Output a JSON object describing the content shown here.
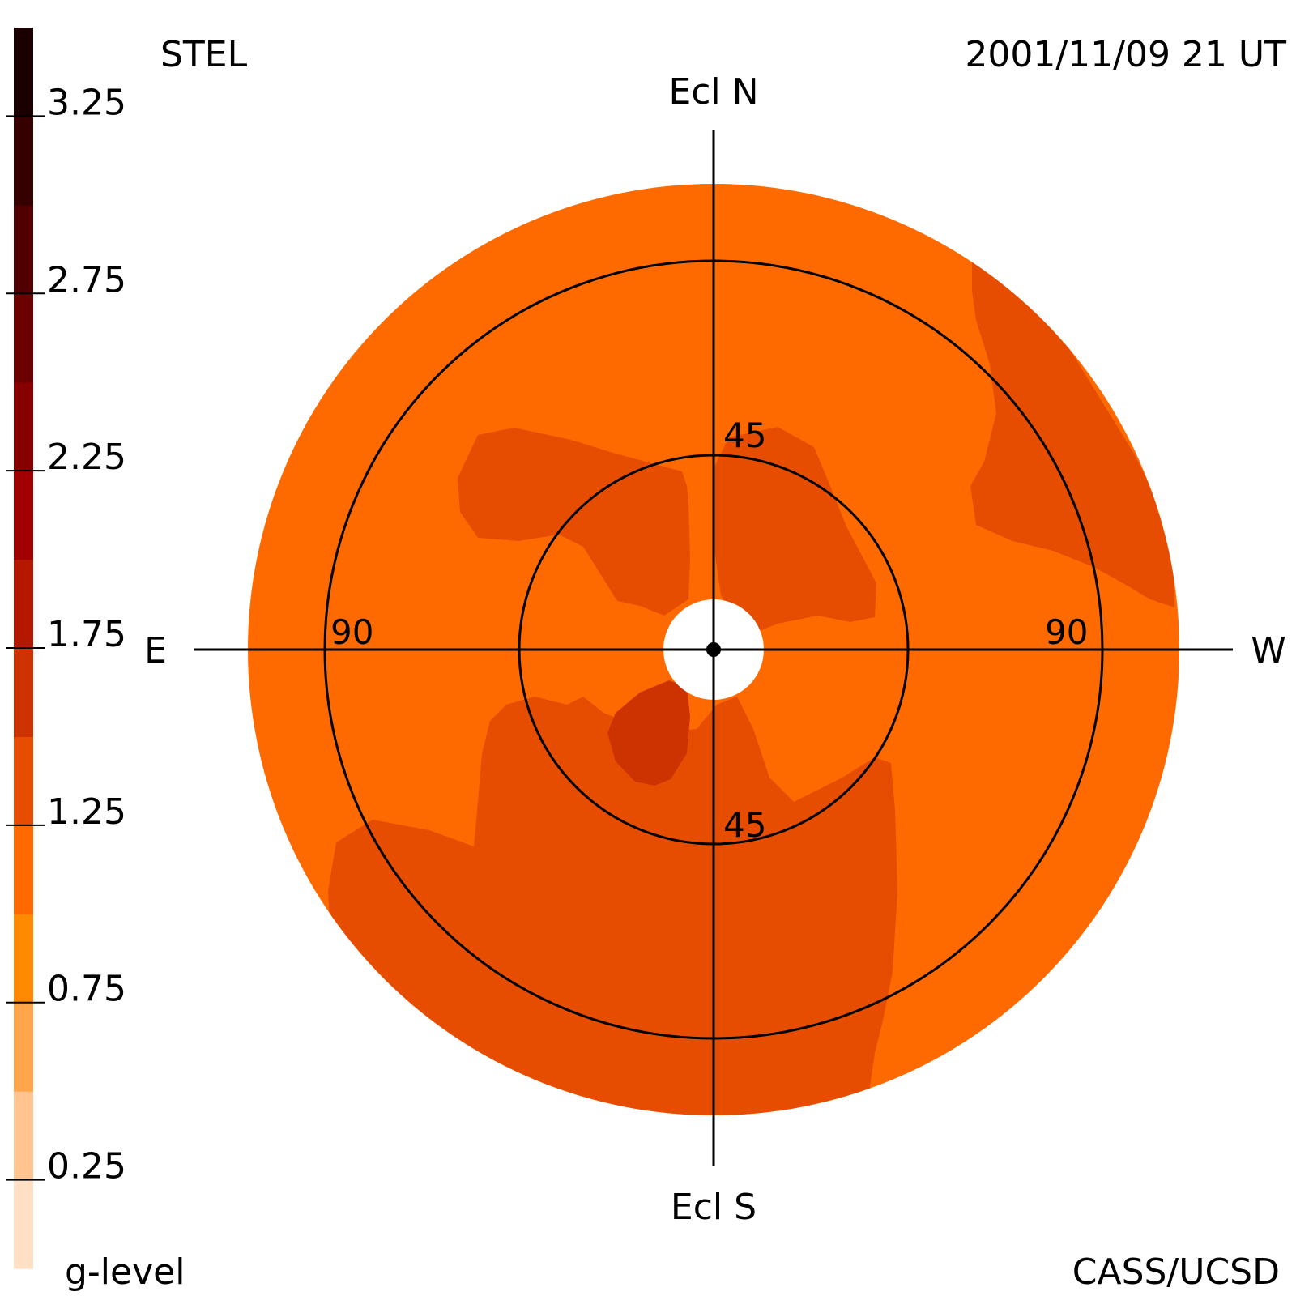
{
  "header": {
    "instrument": "STEL",
    "timestamp": "2001/11/09 21 UT"
  },
  "footer": {
    "colorbar_title": "g-level",
    "credit": "CASS/UCSD"
  },
  "chart_data": {
    "type": "heatmap",
    "projection": "polar fisheye sky map",
    "directions": {
      "north": "Ecl N",
      "south": "Ecl S",
      "east": "E",
      "west": "W"
    },
    "elongation_rings": [
      {
        "value": 45,
        "labels": [
          "45",
          "45"
        ]
      },
      {
        "value": 90,
        "labels": [
          "90",
          "90"
        ]
      }
    ],
    "colorbar": {
      "title": "g-level",
      "range": [
        0,
        3.5
      ],
      "tick_values": [
        3.25,
        2.75,
        2.25,
        1.75,
        1.25,
        0.75,
        0.25
      ],
      "tick_labels": [
        "3.25",
        "2.75",
        "2.25",
        "1.75",
        "1.25",
        "0.75",
        "0.25"
      ],
      "levels": [
        {
          "range": [
            0.0,
            0.25
          ],
          "color": "#FFE0C4"
        },
        {
          "range": [
            0.25,
            0.5
          ],
          "color": "#FFC490"
        },
        {
          "range": [
            0.5,
            0.75
          ],
          "color": "#FFA64C"
        },
        {
          "range": [
            0.75,
            1.0
          ],
          "color": "#FF8A00"
        },
        {
          "range": [
            1.0,
            1.25
          ],
          "color": "#FF6A00"
        },
        {
          "range": [
            1.25,
            1.5
          ],
          "color": "#E64D00"
        },
        {
          "range": [
            1.5,
            1.75
          ],
          "color": "#CC3300"
        },
        {
          "range": [
            1.75,
            2.0
          ],
          "color": "#B41800"
        },
        {
          "range": [
            2.0,
            2.25
          ],
          "color": "#A00000"
        },
        {
          "range": [
            2.25,
            2.5
          ],
          "color": "#860000"
        },
        {
          "range": [
            2.5,
            2.75
          ],
          "color": "#6A0000"
        },
        {
          "range": [
            2.75,
            3.0
          ],
          "color": "#500000"
        },
        {
          "range": [
            3.0,
            3.25
          ],
          "color": "#360000"
        },
        {
          "range": [
            3.25,
            3.5
          ],
          "color": "#1A0000"
        }
      ]
    },
    "field": {
      "background_level_color": "#FF6A00",
      "regions": [
        {
          "name": "north-center-lobe",
          "color": "#E64D00"
        },
        {
          "name": "northwest-band",
          "color": "#E64D00"
        },
        {
          "name": "northeast-lobe",
          "color": "#E64D00"
        },
        {
          "name": "southern-region",
          "color": "#E64D00"
        },
        {
          "name": "southeast-core",
          "color": "#CC3300"
        }
      ]
    }
  }
}
